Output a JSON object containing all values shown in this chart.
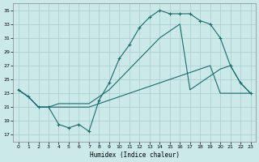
{
  "xlabel": "Humidex (Indice chaleur)",
  "x_ticks": [
    0,
    1,
    2,
    3,
    4,
    5,
    6,
    7,
    8,
    9,
    10,
    11,
    12,
    13,
    14,
    15,
    16,
    17,
    18,
    19,
    20,
    21,
    22,
    23
  ],
  "y_ticks": [
    17,
    19,
    21,
    23,
    25,
    27,
    29,
    31,
    33,
    35
  ],
  "xlim": [
    -0.5,
    23.5
  ],
  "ylim": [
    16,
    36
  ],
  "background_color": "#cce9e9",
  "grid_color": "#b8d8d8",
  "line_color": "#1a6b6b",
  "series1_x": [
    0,
    1,
    2,
    3,
    4,
    5,
    6,
    7,
    8,
    9,
    10,
    11,
    12,
    13,
    14,
    15,
    16,
    17,
    18,
    19,
    20,
    21,
    22,
    23
  ],
  "series1_y": [
    23.5,
    22.5,
    21.0,
    21.0,
    18.5,
    18.0,
    18.5,
    17.5,
    22.0,
    24.5,
    28.0,
    30.0,
    32.5,
    34.0,
    35.0,
    34.5,
    34.5,
    34.5,
    33.5,
    33.0,
    31.0,
    27.0,
    24.5,
    23.0
  ],
  "series2_x": [
    0,
    1,
    2,
    3,
    4,
    5,
    6,
    7,
    8,
    9,
    10,
    11,
    12,
    13,
    14,
    15,
    16,
    17,
    18,
    19,
    20,
    21,
    22,
    23
  ],
  "series2_y": [
    23.5,
    22.5,
    21.0,
    21.0,
    21.5,
    21.5,
    21.5,
    21.5,
    22.5,
    23.5,
    25.0,
    26.5,
    28.0,
    29.5,
    31.0,
    32.0,
    33.0,
    23.5,
    24.5,
    25.5,
    26.5,
    27.0,
    24.5,
    23.0
  ],
  "series3_x": [
    0,
    1,
    2,
    3,
    4,
    5,
    6,
    7,
    8,
    9,
    10,
    11,
    12,
    13,
    14,
    15,
    16,
    17,
    18,
    19,
    20,
    21,
    22,
    23
  ],
  "series3_y": [
    23.5,
    22.5,
    21.0,
    21.0,
    21.0,
    21.0,
    21.0,
    21.0,
    21.5,
    22.0,
    22.5,
    23.0,
    23.5,
    24.0,
    24.5,
    25.0,
    25.5,
    26.0,
    26.5,
    27.0,
    23.0,
    23.0,
    23.0,
    23.0
  ]
}
